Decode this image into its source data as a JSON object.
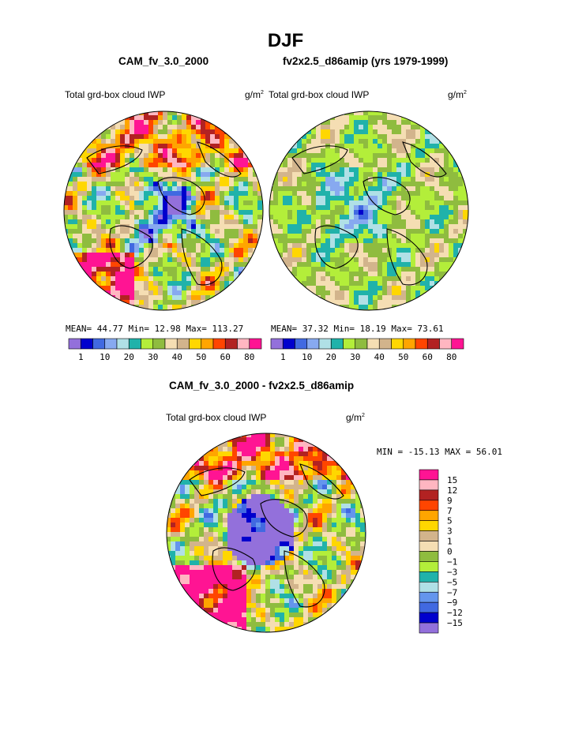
{
  "header": {
    "title": "DJF"
  },
  "panels": [
    {
      "case": "CAM_fv_3.0_2000",
      "variable": "Total grd-box cloud IWP",
      "units": "g/m",
      "units_exp": "2",
      "stats": {
        "mean_label": "MEAN=",
        "mean": "44.77",
        "min_label": "Min=",
        "min": "12.98",
        "max_label": "Max=",
        "max": "113.27"
      }
    },
    {
      "case": "fv2x2.5_d86amip (yrs 1979-1999)",
      "variable": "Total grd-box cloud IWP",
      "units": "g/m",
      "units_exp": "2",
      "stats": {
        "mean_label": "MEAN=",
        "mean": "37.32",
        "min_label": "Min=",
        "min": "18.19",
        "max_label": "Max=",
        "max": "73.61"
      }
    }
  ],
  "diff": {
    "title": "CAM_fv_3.0_2000 - fv2x2.5_d86amip",
    "variable": "Total grd-box cloud IWP",
    "units": "g/m",
    "units_exp": "2",
    "stats": {
      "min_label": "MIN =",
      "min": "-15.13",
      "max_label": "MAX =",
      "max": "56.01"
    }
  },
  "chart_data": [
    {
      "type": "heatmap",
      "projection": "polar-stereographic-north",
      "title": "CAM_fv_3.0_2000",
      "field": "Total grd-box cloud IWP",
      "units": "g/m2",
      "mean": 44.77,
      "min": 12.98,
      "max": 113.27,
      "colorbar": {
        "orientation": "horizontal",
        "tick_labels": [
          "1",
          "10",
          "20",
          "30",
          "40",
          "50",
          "60",
          "80"
        ],
        "colors": [
          "#9370db",
          "#0000cd",
          "#4169e1",
          "#87a9f0",
          "#b0e0e6",
          "#20b2aa",
          "#b3ee3a",
          "#8fbc3f",
          "#f5deb3",
          "#d2b48c",
          "#ffd700",
          "#ffa500",
          "#ff4500",
          "#b22222",
          "#ffb6c1",
          "#ff1493"
        ]
      }
    },
    {
      "type": "heatmap",
      "projection": "polar-stereographic-north",
      "title": "fv2x2.5_d86amip (yrs 1979-1999)",
      "field": "Total grd-box cloud IWP",
      "units": "g/m2",
      "mean": 37.32,
      "min": 18.19,
      "max": 73.61,
      "colorbar": {
        "orientation": "horizontal",
        "tick_labels": [
          "1",
          "10",
          "20",
          "30",
          "40",
          "50",
          "60",
          "80"
        ],
        "colors": [
          "#9370db",
          "#0000cd",
          "#4169e1",
          "#87a9f0",
          "#b0e0e6",
          "#20b2aa",
          "#b3ee3a",
          "#8fbc3f",
          "#f5deb3",
          "#d2b48c",
          "#ffd700",
          "#ffa500",
          "#ff4500",
          "#b22222",
          "#ffb6c1",
          "#ff1493"
        ]
      }
    },
    {
      "type": "heatmap",
      "projection": "polar-stereographic-north",
      "title": "CAM_fv_3.0_2000 - fv2x2.5_d86amip",
      "field": "Total grd-box cloud IWP",
      "units": "g/m2",
      "min": -15.13,
      "max": 56.01,
      "colorbar": {
        "orientation": "vertical",
        "tick_labels": [
          "15",
          "12",
          "9",
          "7",
          "5",
          "3",
          "1",
          "0",
          "−1",
          "−3",
          "−5",
          "−7",
          "−9",
          "−12",
          "−15"
        ],
        "colors": [
          "#ff1493",
          "#ffb6c1",
          "#b22222",
          "#ff4500",
          "#ffa500",
          "#ffd700",
          "#d2b48c",
          "#f5deb3",
          "#8fbc3f",
          "#b3ee3a",
          "#20b2aa",
          "#b0e0e6",
          "#6495ed",
          "#4169e1",
          "#0000cd",
          "#9370db"
        ]
      }
    }
  ]
}
